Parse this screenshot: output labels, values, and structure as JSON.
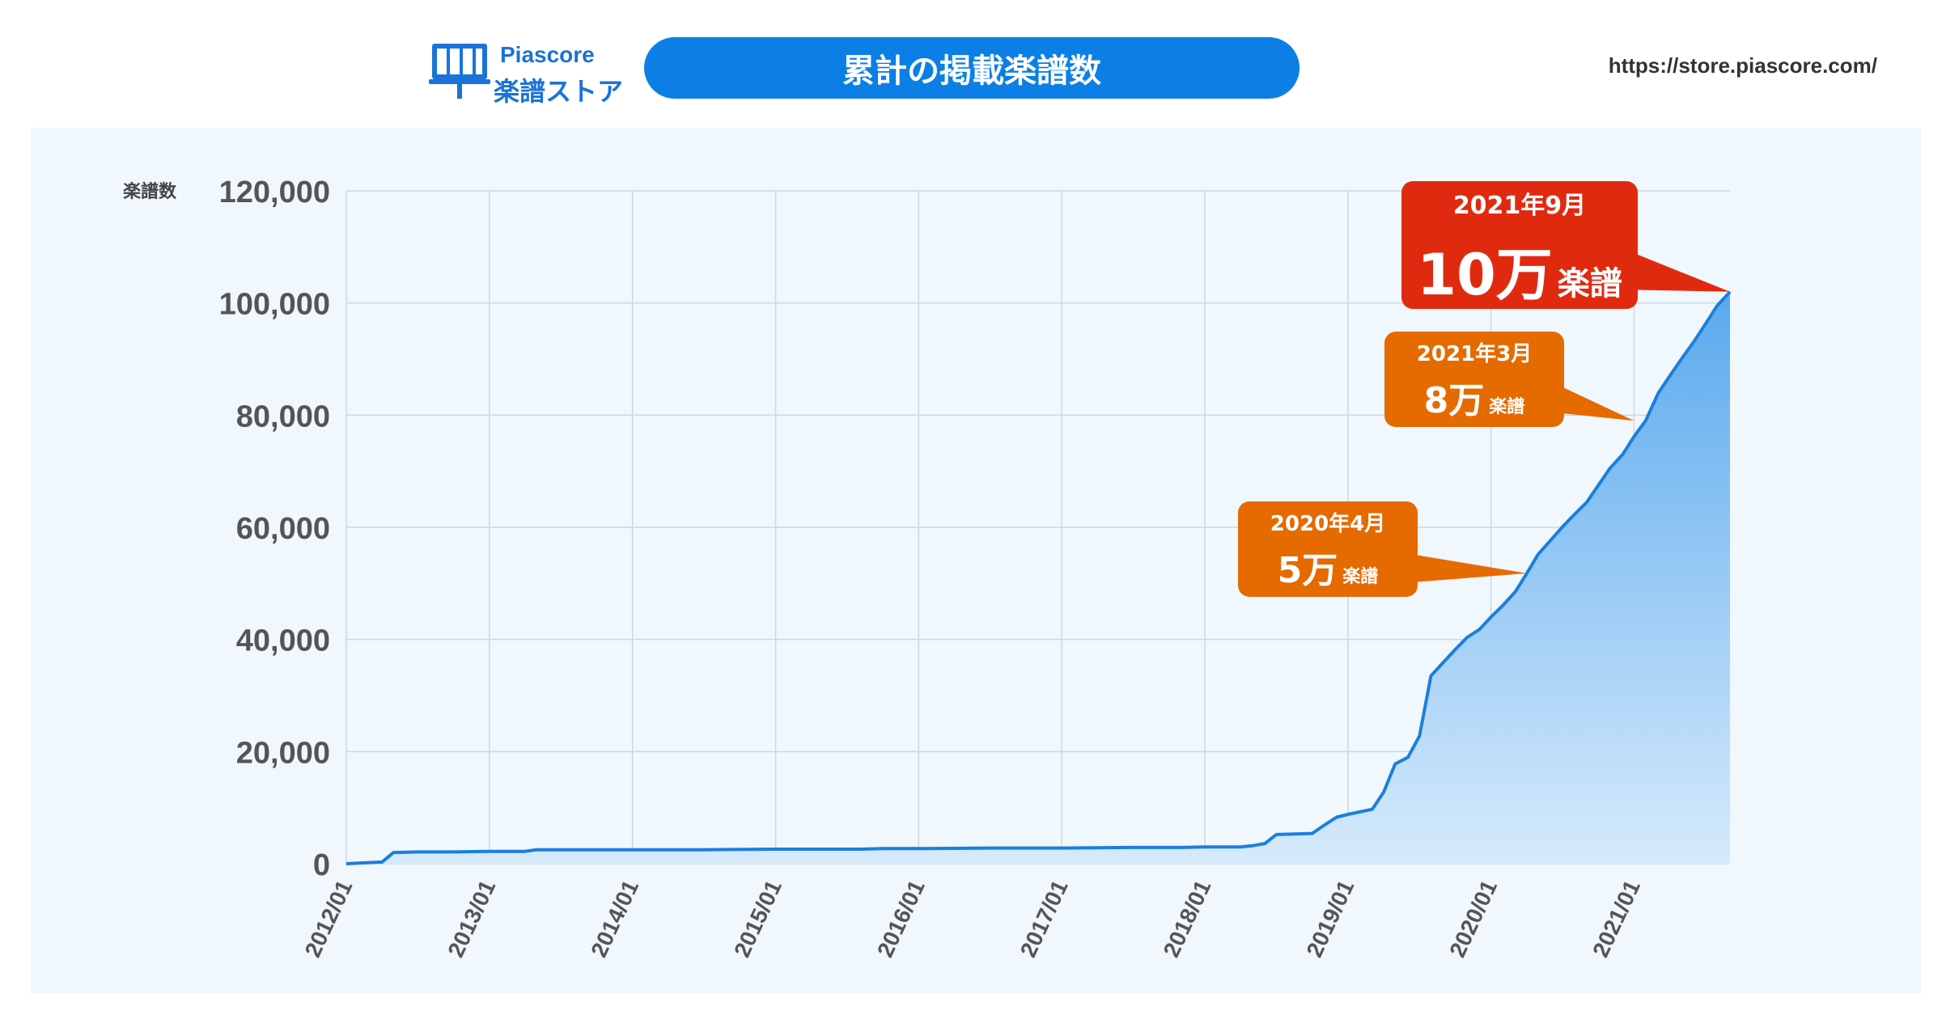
{
  "header": {
    "brand_name": "Piascore",
    "brand_sub": "楽譜ストア",
    "title": "累計の掲載楽譜数",
    "url": "https://store.piascore.com/"
  },
  "colors": {
    "accent": "#0b7fe6",
    "line": "#1a7fdc",
    "area_top": "#5aa9ee",
    "area_bottom": "#d6eafb",
    "callout_red": "#e02a10",
    "callout_orange": "#e56a00",
    "panel_bg": "#f0f7fd"
  },
  "chart_data": {
    "type": "area",
    "ylabel": "楽譜数",
    "xlabel": "",
    "ylim": [
      0,
      120000
    ],
    "yticks": [
      0,
      20000,
      40000,
      60000,
      80000,
      100000,
      120000
    ],
    "ytick_labels": [
      "0",
      "20,000",
      "40,000",
      "60,000",
      "80,000",
      "100,000",
      "120,000"
    ],
    "xlim": [
      2012.0,
      2021.67
    ],
    "xticks": [
      2012,
      2013,
      2014,
      2015,
      2016,
      2017,
      2018,
      2019,
      2020,
      2021
    ],
    "xtick_labels": [
      "2012/01",
      "2013/01",
      "2014/01",
      "2015/01",
      "2016/01",
      "2017/01",
      "2018/01",
      "2019/01",
      "2020/01",
      "2021/01"
    ],
    "grid": true,
    "series": [
      {
        "x": [
          2012.0,
          2012.25,
          2012.33,
          2012.5,
          2012.75,
          2013.0,
          2013.25,
          2013.33,
          2013.5,
          2014.0,
          2014.5,
          2015.0,
          2015.5,
          2015.6,
          2015.75,
          2016.0,
          2016.5,
          2017.0,
          2017.5,
          2017.83,
          2018.0,
          2018.25,
          2018.33,
          2018.42,
          2018.5,
          2018.75,
          2018.83,
          2018.92,
          2019.0,
          2019.17,
          2019.25,
          2019.33,
          2019.42,
          2019.5,
          2019.58,
          2019.67,
          2019.75,
          2019.83,
          2019.92,
          2020.0,
          2020.08,
          2020.17,
          2020.25,
          2020.33,
          2020.42,
          2020.5,
          2020.58,
          2020.67,
          2020.75,
          2020.83,
          2020.92,
          2021.0,
          2021.08,
          2021.17,
          2021.25,
          2021.33,
          2021.42,
          2021.5,
          2021.58,
          2021.67
        ],
        "values": [
          0,
          300,
          2000,
          2100,
          2100,
          2200,
          2200,
          2500,
          2500,
          2500,
          2500,
          2600,
          2600,
          2600,
          2700,
          2700,
          2800,
          2800,
          2900,
          2900,
          3000,
          3000,
          3200,
          3600,
          5200,
          5400,
          6800,
          8300,
          8800,
          9700,
          12800,
          17800,
          19000,
          22800,
          33500,
          36000,
          38200,
          40300,
          41800,
          44000,
          46000,
          48500,
          51800,
          55200,
          57800,
          60100,
          62200,
          64500,
          67500,
          70500,
          73000,
          76200,
          79000,
          84000,
          87000,
          90000,
          93200,
          96300,
          99500,
          102000
        ]
      }
    ],
    "annotations": [
      {
        "date": "2020年4月",
        "big": "5万",
        "small": "楽譜",
        "x": 2020.25,
        "y": 51800,
        "color": "orange"
      },
      {
        "date": "2021年3月",
        "big": "8万",
        "small": "楽譜",
        "x": 2021.0,
        "y": 79000,
        "color": "orange"
      },
      {
        "date": "2021年9月",
        "big": "10万",
        "small": "楽譜",
        "x": 2021.67,
        "y": 102000,
        "color": "red"
      }
    ]
  }
}
